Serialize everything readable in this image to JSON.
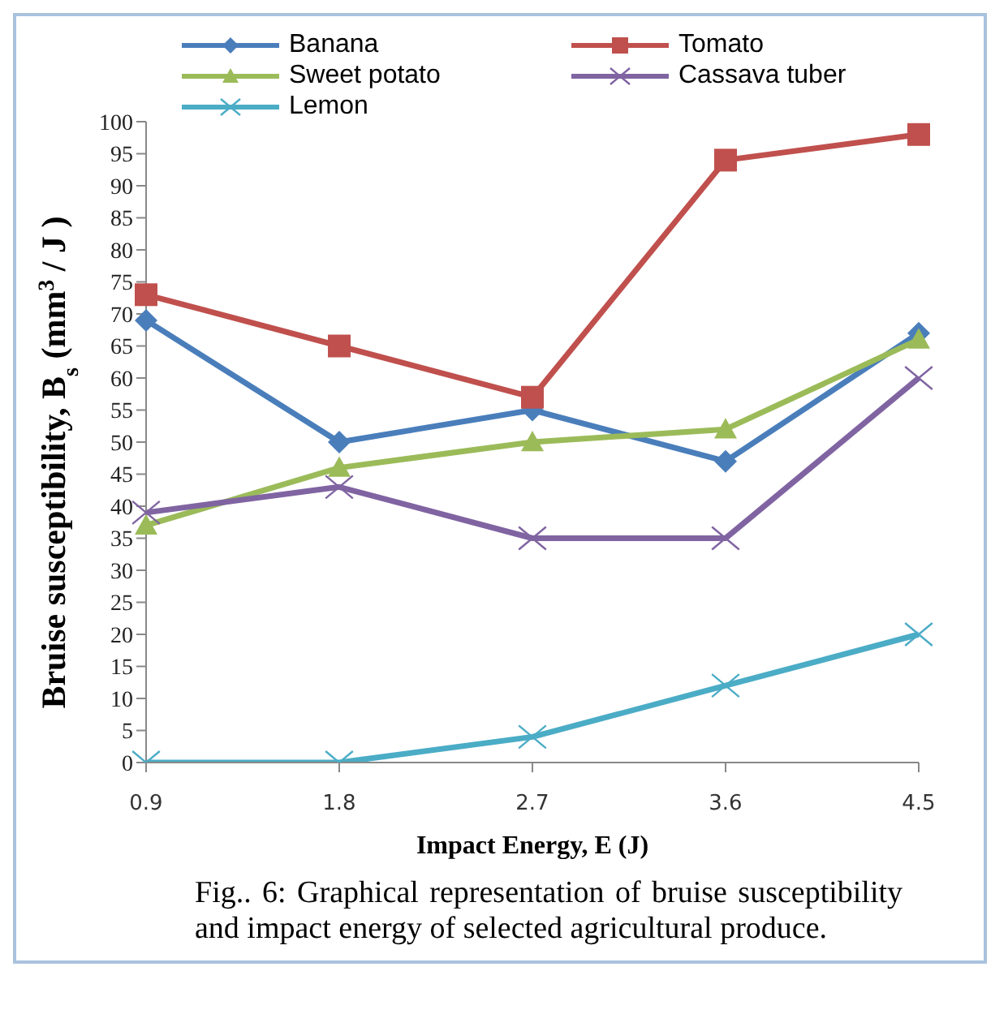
{
  "chart_data": {
    "type": "line",
    "xlabel": "Impact Energy, E (J)",
    "ylabel": "Bruise susceptibility, B$_{s}$ (mm$^{3}$ / J )",
    "categories": [
      "0.9",
      "1.8",
      "2.7",
      "3.6",
      "4.5"
    ],
    "series": [
      {
        "name": "Banana",
        "color": "#4a7ebb",
        "marker": "diamond",
        "values": [
          69,
          50,
          55,
          47,
          67
        ]
      },
      {
        "name": "Tomato",
        "color": "#c0504d",
        "marker": "square",
        "values": [
          73,
          65,
          57,
          94,
          98
        ]
      },
      {
        "name": "Sweet potato",
        "color": "#9bbb59",
        "marker": "triangle",
        "values": [
          37,
          46,
          50,
          52,
          66
        ]
      },
      {
        "name": "Cassava tuber",
        "color": "#8064a2",
        "marker": "cross",
        "values": [
          39,
          43,
          35,
          35,
          60
        ]
      },
      {
        "name": "Lemon",
        "color": "#4bacc6",
        "marker": "cross",
        "values": [
          0,
          0,
          4,
          12,
          20
        ]
      }
    ],
    "ylim": [
      0,
      100
    ],
    "yticks": [
      0,
      5,
      10,
      15,
      20,
      25,
      30,
      35,
      40,
      45,
      50,
      55,
      60,
      65,
      70,
      75,
      80,
      85,
      90,
      95,
      100
    ],
    "grid": false,
    "legend": "top",
    "annotations": [
      "Fig.. 6: Graphical representation of bruise susceptibility and impact energy of selected agricultural produce."
    ]
  }
}
